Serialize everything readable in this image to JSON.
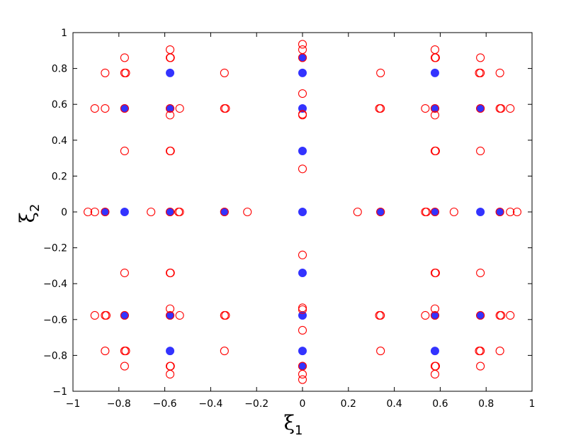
{
  "chart_data": {
    "type": "scatter",
    "xlabel": "ξ",
    "xlabel_subscript": "1",
    "ylabel": "ξ",
    "ylabel_subscript": "2",
    "xlim": [
      -1,
      1
    ],
    "ylim": [
      -1,
      1
    ],
    "xticks": [
      "−1",
      "−0.8",
      "−0.6",
      "−0.4",
      "−0.2",
      "0",
      "0.2",
      "0.4",
      "0.6",
      "0.8",
      "1"
    ],
    "yticks": [
      "−1",
      "−0.8",
      "−0.6",
      "−0.4",
      "−0.2",
      "0",
      "0.2",
      "0.4",
      "0.6",
      "0.8",
      "1"
    ],
    "xtick_values": [
      -1,
      -0.8,
      -0.6,
      -0.4,
      -0.2,
      0,
      0.2,
      0.4,
      0.6,
      0.8,
      1
    ],
    "ytick_values": [
      -1,
      -0.8,
      -0.6,
      -0.4,
      -0.2,
      0,
      0.2,
      0.4,
      0.6,
      0.8,
      1
    ],
    "grid": false,
    "series": [
      {
        "marker": "filled-circle",
        "color": "#3333ff",
        "points": [
          [
            -0.86,
            0
          ],
          [
            -0.775,
            0
          ],
          [
            -0.577,
            0
          ],
          [
            -0.34,
            0
          ],
          [
            0,
            0
          ],
          [
            0.34,
            0
          ],
          [
            0.577,
            0
          ],
          [
            0.775,
            0
          ],
          [
            0.86,
            0
          ],
          [
            0,
            0.86
          ],
          [
            0,
            0.775
          ],
          [
            0,
            0.577
          ],
          [
            0,
            0.34
          ],
          [
            0,
            -0.34
          ],
          [
            0,
            -0.577
          ],
          [
            0,
            -0.775
          ],
          [
            0,
            -0.86
          ],
          [
            -0.577,
            0.775
          ],
          [
            0.577,
            0.775
          ],
          [
            -0.577,
            -0.775
          ],
          [
            0.577,
            -0.775
          ],
          [
            -0.775,
            0.577
          ],
          [
            -0.577,
            0.577
          ],
          [
            0.577,
            0.577
          ],
          [
            0.775,
            0.577
          ],
          [
            -0.775,
            -0.577
          ],
          [
            -0.577,
            -0.577
          ],
          [
            0.577,
            -0.577
          ],
          [
            0.775,
            -0.577
          ]
        ]
      },
      {
        "marker": "open-circle",
        "color": "#ff0000",
        "points": [
          [
            -0.935,
            0
          ],
          [
            -0.905,
            0
          ],
          [
            -0.86,
            0
          ],
          [
            -0.66,
            0
          ],
          [
            -0.577,
            0
          ],
          [
            -0.54,
            0
          ],
          [
            -0.535,
            0
          ],
          [
            -0.34,
            0
          ],
          [
            -0.24,
            0
          ],
          [
            0.24,
            0
          ],
          [
            0.34,
            0
          ],
          [
            0.535,
            0
          ],
          [
            0.54,
            0
          ],
          [
            0.577,
            0
          ],
          [
            0.66,
            0
          ],
          [
            0.86,
            0
          ],
          [
            0.905,
            0
          ],
          [
            0.935,
            0
          ],
          [
            0,
            0.935
          ],
          [
            0,
            0.905
          ],
          [
            0,
            0.86
          ],
          [
            0,
            0.66
          ],
          [
            0,
            0.545
          ],
          [
            0,
            0.54
          ],
          [
            0,
            0.24
          ],
          [
            0,
            -0.24
          ],
          [
            0,
            -0.535
          ],
          [
            0,
            -0.545
          ],
          [
            0,
            -0.66
          ],
          [
            0,
            -0.86
          ],
          [
            0,
            -0.905
          ],
          [
            0,
            -0.935
          ],
          [
            -0.775,
            0.86
          ],
          [
            -0.86,
            0.775
          ],
          [
            -0.775,
            0.775
          ],
          [
            -0.77,
            0.775
          ],
          [
            -0.577,
            0.905
          ],
          [
            -0.577,
            0.86
          ],
          [
            -0.575,
            0.86
          ],
          [
            -0.34,
            0.775
          ],
          [
            -0.905,
            0.577
          ],
          [
            -0.86,
            0.577
          ],
          [
            -0.775,
            0.577
          ],
          [
            -0.577,
            0.577
          ],
          [
            -0.535,
            0.577
          ],
          [
            -0.34,
            0.577
          ],
          [
            -0.335,
            0.577
          ],
          [
            -0.577,
            0.54
          ],
          [
            -0.775,
            0.34
          ],
          [
            -0.577,
            0.34
          ],
          [
            -0.575,
            0.34
          ],
          [
            0.34,
            0.775
          ],
          [
            0.577,
            0.905
          ],
          [
            0.577,
            0.86
          ],
          [
            0.58,
            0.86
          ],
          [
            0.775,
            0.86
          ],
          [
            0.775,
            0.775
          ],
          [
            0.77,
            0.775
          ],
          [
            0.86,
            0.775
          ],
          [
            0.34,
            0.577
          ],
          [
            0.335,
            0.577
          ],
          [
            0.535,
            0.577
          ],
          [
            0.577,
            0.577
          ],
          [
            0.775,
            0.577
          ],
          [
            0.86,
            0.577
          ],
          [
            0.865,
            0.577
          ],
          [
            0.905,
            0.577
          ],
          [
            0.577,
            0.54
          ],
          [
            0.577,
            0.34
          ],
          [
            0.58,
            0.34
          ],
          [
            0.775,
            0.34
          ],
          [
            -0.775,
            -0.86
          ],
          [
            -0.86,
            -0.775
          ],
          [
            -0.775,
            -0.775
          ],
          [
            -0.77,
            -0.775
          ],
          [
            -0.577,
            -0.905
          ],
          [
            -0.577,
            -0.86
          ],
          [
            -0.575,
            -0.86
          ],
          [
            -0.34,
            -0.775
          ],
          [
            -0.905,
            -0.577
          ],
          [
            -0.86,
            -0.577
          ],
          [
            -0.855,
            -0.577
          ],
          [
            -0.775,
            -0.577
          ],
          [
            -0.577,
            -0.577
          ],
          [
            -0.535,
            -0.577
          ],
          [
            -0.34,
            -0.577
          ],
          [
            -0.335,
            -0.577
          ],
          [
            -0.577,
            -0.54
          ],
          [
            -0.775,
            -0.34
          ],
          [
            -0.577,
            -0.34
          ],
          [
            -0.575,
            -0.34
          ],
          [
            0.34,
            -0.775
          ],
          [
            0.577,
            -0.905
          ],
          [
            0.577,
            -0.86
          ],
          [
            0.58,
            -0.86
          ],
          [
            0.775,
            -0.86
          ],
          [
            0.775,
            -0.775
          ],
          [
            0.77,
            -0.775
          ],
          [
            0.86,
            -0.775
          ],
          [
            0.34,
            -0.577
          ],
          [
            0.335,
            -0.577
          ],
          [
            0.535,
            -0.577
          ],
          [
            0.577,
            -0.577
          ],
          [
            0.775,
            -0.577
          ],
          [
            0.86,
            -0.577
          ],
          [
            0.865,
            -0.577
          ],
          [
            0.905,
            -0.577
          ],
          [
            0.577,
            -0.54
          ],
          [
            0.577,
            -0.34
          ],
          [
            0.58,
            -0.34
          ],
          [
            0.775,
            -0.34
          ]
        ]
      }
    ]
  }
}
